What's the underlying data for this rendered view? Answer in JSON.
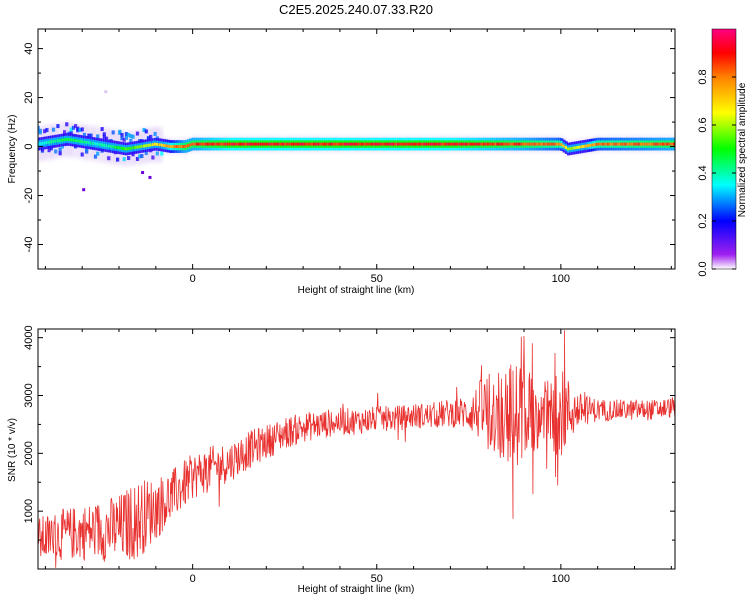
{
  "title": "C2E5.2025.240.07.33.R20",
  "colors": {
    "snr_line": "#e8312f",
    "background": "#ffffff",
    "axis": "#000000"
  },
  "chart_data": [
    {
      "type": "heatmap",
      "xlabel": "Height of straight line (km)",
      "ylabel": "Frequency (Hz)",
      "xlim": [
        -42,
        131
      ],
      "ylim": [
        -50,
        48
      ],
      "x_ticks": [
        "0",
        "50",
        "100"
      ],
      "x_tick_values": [
        0,
        50,
        100
      ],
      "y_ticks": [
        "40",
        "20",
        "0",
        "-20",
        "-40"
      ],
      "y_tick_values": [
        40,
        20,
        0,
        -20,
        -40
      ],
      "colorbar": {
        "label": "Normalized spectral amplitude",
        "range": [
          0,
          1
        ],
        "ticks": [
          "0.0",
          "0.2",
          "0.4",
          "0.6",
          "0.8"
        ],
        "tick_values": [
          0.0,
          0.2,
          0.4,
          0.6,
          0.8
        ],
        "colormap": [
          "#a020f0",
          "#0000ff",
          "#00ffff",
          "#00ff00",
          "#ffff00",
          "#ff8000",
          "#ff0000",
          "#ff0080"
        ]
      },
      "ridge": {
        "x": [
          -42,
          -38,
          -34,
          -30,
          -26,
          -22,
          -18,
          -14,
          -10,
          -6,
          -2,
          0,
          10,
          30,
          50,
          70,
          90,
          100,
          102,
          110,
          131
        ],
        "frequency": [
          1,
          2,
          3,
          2,
          1,
          0,
          -1,
          0,
          1,
          0,
          0,
          1,
          1,
          1,
          1,
          1,
          1,
          1,
          -1,
          1,
          1
        ],
        "amplitude": [
          0.35,
          0.45,
          0.5,
          0.45,
          0.4,
          0.45,
          0.55,
          0.6,
          0.7,
          0.8,
          0.9,
          0.9,
          0.95,
          0.95,
          0.95,
          0.95,
          0.9,
          0.85,
          0.6,
          0.85,
          0.9
        ]
      }
    },
    {
      "type": "line",
      "xlabel": "Height of straight line (km)",
      "ylabel": "SNR (10 * v/v)",
      "xlim": [
        -42,
        131
      ],
      "ylim": [
        0,
        4150
      ],
      "x_ticks": [
        "0",
        "50",
        "100"
      ],
      "x_tick_values": [
        0,
        50,
        100
      ],
      "y_ticks": [
        "1000",
        "2000",
        "3000",
        "4000"
      ],
      "y_tick_values": [
        1000,
        2000,
        3000,
        4000
      ],
      "series": [
        {
          "x": [
            -42,
            -35,
            -28,
            -20,
            -15,
            -10,
            -5,
            0,
            5,
            10,
            15,
            20,
            25,
            30,
            35,
            40,
            45,
            50,
            55,
            60,
            65,
            70,
            75,
            80,
            85,
            90,
            95,
            100,
            105,
            110,
            115,
            120,
            125,
            131
          ],
          "median": [
            500,
            600,
            650,
            700,
            850,
            1050,
            1300,
            1600,
            1750,
            1850,
            2050,
            2200,
            2350,
            2450,
            2500,
            2550,
            2550,
            2600,
            2600,
            2650,
            2650,
            2700,
            2700,
            2750,
            2700,
            2650,
            2700,
            2700,
            2750,
            2750,
            2750,
            2750,
            2750,
            2800
          ],
          "spread": [
            400,
            450,
            500,
            600,
            700,
            550,
            450,
            400,
            380,
            350,
            330,
            300,
            280,
            260,
            250,
            240,
            230,
            220,
            220,
            220,
            230,
            250,
            300,
            700,
            900,
            900,
            500,
            800,
            300,
            200,
            180,
            180,
            180,
            180
          ],
          "max_peak": [
            4130,
            101
          ],
          "min_dip": [
            870,
            87
          ]
        }
      ]
    }
  ]
}
